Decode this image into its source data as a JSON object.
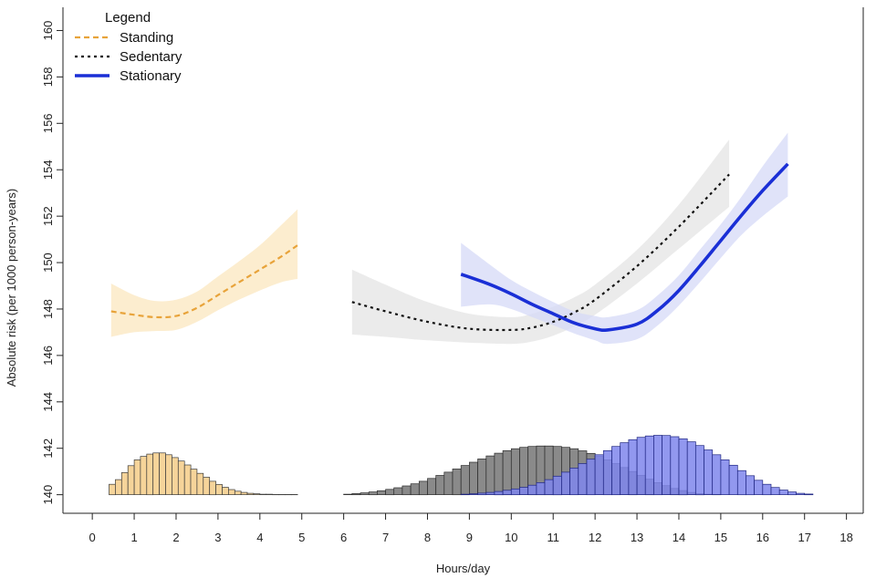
{
  "chart_data": {
    "type": "line",
    "xlabel": "Hours/day",
    "ylabel": "Absolute risk (per 1000 person-years)",
    "xlim": [
      -0.7,
      18.4
    ],
    "ylim": [
      139.2,
      161.0
    ],
    "xticks": [
      0,
      1,
      2,
      3,
      4,
      5,
      6,
      7,
      8,
      9,
      10,
      11,
      12,
      13,
      14,
      15,
      16,
      17,
      18
    ],
    "yticks": [
      140,
      142,
      144,
      146,
      148,
      150,
      152,
      154,
      156,
      158,
      160
    ],
    "grid": false,
    "legend": {
      "title": "Legend",
      "position": "top-left",
      "entries": [
        {
          "label": "Standing",
          "color": "#e8a33a",
          "style": "dashed"
        },
        {
          "label": "Sedentary",
          "color": "#111111",
          "style": "dotted"
        },
        {
          "label": "Stationary",
          "color": "#1a2fd6",
          "style": "solid"
        }
      ]
    },
    "series": [
      {
        "name": "Standing",
        "color": "#e8a33a",
        "band_color": "#fbe7bf",
        "x": [
          0.45,
          1.0,
          1.5,
          2.0,
          2.5,
          3.0,
          3.5,
          4.0,
          4.5,
          4.9
        ],
        "y": [
          147.9,
          147.75,
          147.65,
          147.7,
          148.05,
          148.6,
          149.15,
          149.7,
          150.25,
          150.75
        ],
        "lower": [
          146.8,
          147.0,
          147.05,
          147.1,
          147.45,
          147.95,
          148.4,
          148.8,
          149.15,
          149.3
        ],
        "upper": [
          149.1,
          148.6,
          148.35,
          148.4,
          148.75,
          149.4,
          150.05,
          150.75,
          151.6,
          152.3
        ]
      },
      {
        "name": "Sedentary",
        "color": "#111111",
        "band_color": "#e4e4e4",
        "x": [
          6.2,
          7.0,
          8.0,
          9.0,
          10.0,
          10.5,
          11.0,
          11.5,
          12.0,
          13.0,
          14.0,
          15.2
        ],
        "y": [
          148.3,
          147.9,
          147.45,
          147.15,
          147.1,
          147.2,
          147.45,
          147.85,
          148.4,
          149.85,
          151.55,
          153.8
        ],
        "lower": [
          146.9,
          146.8,
          146.65,
          146.55,
          146.5,
          146.6,
          146.85,
          147.25,
          147.75,
          149.1,
          150.6,
          152.4
        ],
        "upper": [
          149.7,
          149.05,
          148.3,
          147.8,
          147.65,
          147.8,
          148.1,
          148.5,
          149.05,
          150.55,
          152.5,
          155.3
        ]
      },
      {
        "name": "Stationary",
        "color": "#1a2fd6",
        "band_color": "#d6daf7",
        "x": [
          8.8,
          9.5,
          10.0,
          10.5,
          11.0,
          11.5,
          12.0,
          12.3,
          13.0,
          13.5,
          14.0,
          14.5,
          15.0,
          15.5,
          16.0,
          16.6
        ],
        "y": [
          149.5,
          149.05,
          148.65,
          148.2,
          147.8,
          147.4,
          147.15,
          147.1,
          147.35,
          147.95,
          148.8,
          149.85,
          150.95,
          152.05,
          153.1,
          154.25
        ],
        "lower": [
          148.1,
          148.2,
          148.0,
          147.65,
          147.3,
          146.95,
          146.65,
          146.5,
          146.7,
          147.3,
          148.15,
          149.15,
          150.2,
          151.2,
          152.0,
          152.85
        ],
        "upper": [
          150.85,
          149.9,
          149.25,
          148.75,
          148.3,
          147.9,
          147.7,
          147.65,
          147.95,
          148.6,
          149.45,
          150.55,
          151.65,
          152.85,
          154.15,
          155.6
        ]
      }
    ],
    "histograms": [
      {
        "name": "Standing",
        "fill": "#f6d49a",
        "stroke": "#3a3a3a",
        "x_start": 0.4,
        "bin_width": 0.15,
        "heights": [
          0.45,
          0.65,
          0.95,
          1.25,
          1.5,
          1.65,
          1.75,
          1.8,
          1.8,
          1.72,
          1.6,
          1.45,
          1.28,
          1.1,
          0.92,
          0.75,
          0.58,
          0.44,
          0.32,
          0.22,
          0.15,
          0.1,
          0.06,
          0.04,
          0.02,
          0.02,
          0.01,
          0.01,
          0.01,
          0.01
        ]
      },
      {
        "name": "Sedentary",
        "fill": "#8a8a8a",
        "stroke": "#2a2a2a",
        "x_start": 6.0,
        "bin_width": 0.2,
        "heights": [
          0.02,
          0.05,
          0.08,
          0.12,
          0.17,
          0.23,
          0.3,
          0.38,
          0.47,
          0.58,
          0.7,
          0.83,
          0.97,
          1.11,
          1.26,
          1.4,
          1.54,
          1.67,
          1.79,
          1.9,
          1.98,
          2.04,
          2.08,
          2.1,
          2.1,
          2.08,
          2.04,
          1.98,
          1.89,
          1.78,
          1.65,
          1.5,
          1.34,
          1.17,
          1.0,
          0.83,
          0.67,
          0.52,
          0.39,
          0.27,
          0.18,
          0.1,
          0.05,
          0.02,
          0.01,
          0.0
        ]
      },
      {
        "name": "Stationary",
        "fill": "#7f86ec",
        "stroke": "#1e2580",
        "x_start": 8.8,
        "bin_width": 0.2,
        "heights": [
          0.02,
          0.04,
          0.07,
          0.1,
          0.14,
          0.19,
          0.25,
          0.32,
          0.41,
          0.52,
          0.65,
          0.8,
          0.97,
          1.15,
          1.34,
          1.53,
          1.72,
          1.9,
          2.08,
          2.24,
          2.37,
          2.47,
          2.53,
          2.56,
          2.55,
          2.5,
          2.41,
          2.28,
          2.12,
          1.93,
          1.72,
          1.5,
          1.27,
          1.04,
          0.82,
          0.62,
          0.45,
          0.31,
          0.2,
          0.12,
          0.06,
          0.03
        ]
      }
    ]
  }
}
